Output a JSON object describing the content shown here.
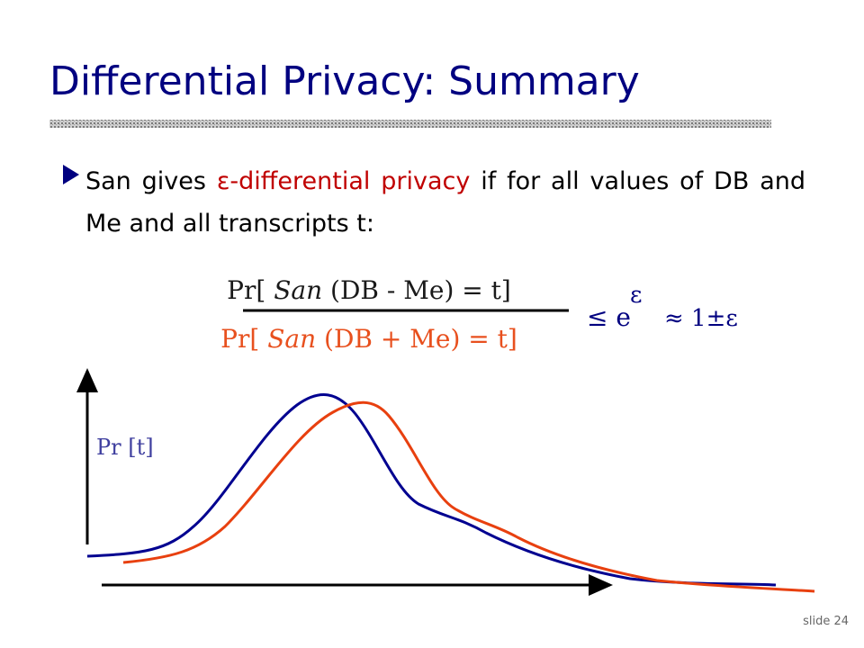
{
  "title": "Differential Privacy: Summary",
  "bullet": {
    "parts": [
      "San gives ",
      "ε-differential privacy",
      " if for all values of DB and Me and all transcripts t:"
    ]
  },
  "formula": {
    "numerator": {
      "prefix": "Pr[",
      "mechanism": "San",
      "rest": "(DB - Me) = t]"
    },
    "denominator": {
      "prefix": "Pr[",
      "mechanism": "San",
      "rest": "(DB + Me) = t]"
    },
    "bound": "≤ e",
    "exponent": "ε",
    "approx": "≈ 1±ε"
  },
  "plot": {
    "y_label": "Pr [t]"
  },
  "footer": "slide 24"
}
